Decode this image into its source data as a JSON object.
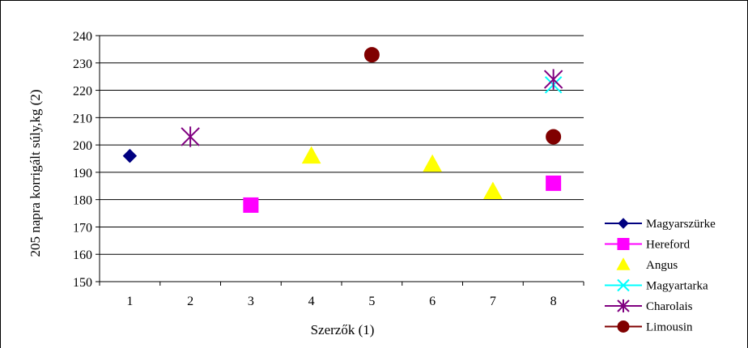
{
  "chart_data": {
    "type": "scatter",
    "title": "",
    "xlabel": "Szerzők (1)",
    "ylabel": "205 napra korrigált súly,kg (2)",
    "x_categories": [
      "1",
      "2",
      "3",
      "4",
      "5",
      "6",
      "7",
      "8"
    ],
    "ylim": [
      150,
      240
    ],
    "y_ticks": [
      150,
      160,
      170,
      180,
      190,
      200,
      210,
      220,
      230,
      240
    ],
    "grid": true,
    "legend_position": "right",
    "series": [
      {
        "name": "Magyarszürke",
        "color": "#000080",
        "marker": "diamond",
        "points": [
          {
            "x": "1",
            "y": 196
          }
        ]
      },
      {
        "name": "Hereford",
        "color": "#FF00FF",
        "marker": "square",
        "points": [
          {
            "x": "3",
            "y": 178
          },
          {
            "x": "8",
            "y": 186
          }
        ]
      },
      {
        "name": "Angus",
        "color": "#FFFF00",
        "marker": "triangle",
        "points": [
          {
            "x": "4",
            "y": 196
          },
          {
            "x": "6",
            "y": 193
          },
          {
            "x": "7",
            "y": 183
          }
        ]
      },
      {
        "name": "Magyartarka",
        "color": "#00FFFF",
        "marker": "x",
        "points": [
          {
            "x": "8",
            "y": 222
          }
        ]
      },
      {
        "name": "Charolais",
        "color": "#800080",
        "marker": "star",
        "points": [
          {
            "x": "2",
            "y": 203
          },
          {
            "x": "8",
            "y": 224
          }
        ]
      },
      {
        "name": "Limousin",
        "color": "#800000",
        "marker": "circle",
        "points": [
          {
            "x": "5",
            "y": 233
          },
          {
            "x": "8",
            "y": 203
          }
        ]
      }
    ]
  }
}
